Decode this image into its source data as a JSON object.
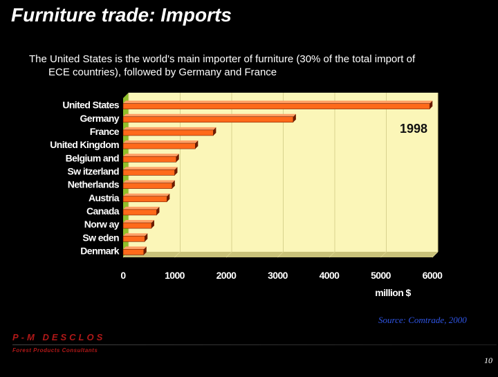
{
  "slide": {
    "title": "Furniture trade: Imports",
    "description_line1": "The United States is the world's main importer of furniture (30% of the total import of",
    "description_line2": "ECE countries), followed by Germany and France",
    "source": "Source: Comtrade, 2000",
    "brand_name": "P-M DESCLOS",
    "brand_tagline": "Forest Products Consultants",
    "page_number": "10"
  },
  "colors": {
    "background": "#000000",
    "plot_background": "#fbf6b8",
    "bar_fill": "#ff6a1a",
    "bar_edge": "#6b1c00",
    "source_text": "#2f55e6",
    "brand_text": "#b01818"
  },
  "chart_data": {
    "type": "bar",
    "orientation": "horizontal",
    "title": "",
    "annotation": "1998",
    "xlabel": "million $",
    "ylabel": "",
    "categories": [
      "United States",
      "Germany",
      "France",
      "United Kingdom",
      "Belgium and",
      "Sw itzerland",
      "Netherlands",
      "Austria",
      "Canada",
      "Norw ay",
      "Sw eden",
      "Denmark"
    ],
    "values": [
      5950,
      3300,
      1750,
      1400,
      1030,
      1000,
      950,
      850,
      650,
      550,
      420,
      400
    ],
    "xlim": [
      0,
      6000
    ],
    "xticks": [
      0,
      1000,
      2000,
      3000,
      4000,
      5000,
      6000
    ],
    "xtick_labels": [
      "0",
      "1000",
      "2000",
      "3000",
      "4000",
      "5000",
      "6000"
    ],
    "grid": "vertical",
    "legend": "none"
  }
}
